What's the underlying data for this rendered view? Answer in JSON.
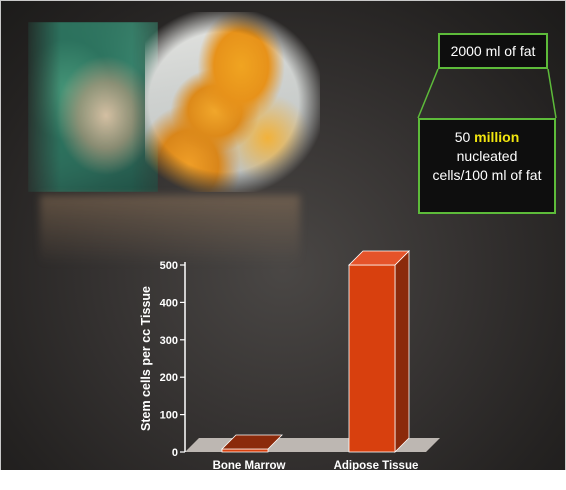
{
  "info_boxes": {
    "fat_volume": "2000 ml of fat",
    "cell_count_number": "50",
    "cell_count_unit": "million",
    "cell_count_line2": "nucleated",
    "cell_count_line3": "cells/100 ml of fat"
  },
  "colors": {
    "bar_front": "#d8400e",
    "bar_side": "#8b2a0b",
    "bar_top": "#e5532a",
    "floor": "#bdb7b2",
    "axis": "#ffffff",
    "callout": "#5dbb3a",
    "highlight": "#f2e60f"
  },
  "chart_data": {
    "type": "bar",
    "categories": [
      "Bone Marrow",
      "Adipose Tissue"
    ],
    "values": [
      3,
      500
    ],
    "title": "",
    "xlabel": "",
    "ylabel": "Stem cells per cc Tissue",
    "ylim": [
      0,
      500
    ],
    "yticks": [
      0,
      100,
      200,
      300,
      400,
      500
    ],
    "grid": false,
    "style": "3d-bar"
  }
}
